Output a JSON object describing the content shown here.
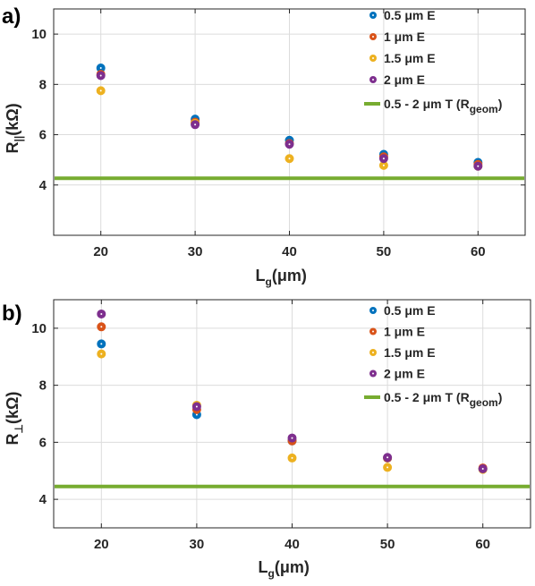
{
  "chart_data": [
    {
      "type": "scatter",
      "panel_label": "a)",
      "ylabel": {
        "main": "R",
        "sub": "||",
        "unit": "(kΩ)"
      },
      "xlabel": {
        "main": "L",
        "sub": "g",
        "unit": "(μm)"
      },
      "xlim": [
        15,
        65
      ],
      "ylim": [
        2,
        11
      ],
      "xticks": [
        "20",
        "30",
        "40",
        "50",
        "60"
      ],
      "yticks": [
        "4",
        "6",
        "8",
        "10"
      ],
      "grid": true,
      "legend_position": "top-right",
      "x": [
        20,
        30,
        40,
        50,
        60
      ],
      "series": [
        {
          "name": "0.5 μm E",
          "color": "#0072BD",
          "values": [
            8.65,
            6.62,
            5.78,
            5.22,
            4.9
          ]
        },
        {
          "name": "1 μm E",
          "color": "#D95319",
          "values": [
            8.4,
            6.5,
            5.65,
            5.12,
            4.82
          ]
        },
        {
          "name": "1.5 μm E",
          "color": "#EDB120",
          "values": [
            7.75,
            6.45,
            5.05,
            4.78,
            4.75
          ]
        },
        {
          "name": "2 μm E",
          "color": "#7E2F8E",
          "values": [
            8.35,
            6.4,
            5.62,
            5.05,
            4.75
          ]
        }
      ],
      "reference_line": {
        "name": "0.5 - 2 μm T (R",
        "name_sub": "geom",
        "name_end": ")",
        "value": 4.27,
        "color": "#77AC30"
      }
    },
    {
      "type": "scatter",
      "panel_label": "b)",
      "ylabel": {
        "main": "R",
        "sub": "⊥",
        "unit": "(kΩ)"
      },
      "xlabel": {
        "main": "L",
        "sub": "g",
        "unit": "(μm)"
      },
      "xlim": [
        15,
        65
      ],
      "ylim": [
        3,
        11
      ],
      "xticks": [
        "20",
        "30",
        "40",
        "50",
        "60"
      ],
      "yticks": [
        "4",
        "6",
        "8",
        "10"
      ],
      "grid": true,
      "legend_position": "top-right",
      "x": [
        20,
        30,
        40,
        50,
        60
      ],
      "series": [
        {
          "name": "0.5 μm E",
          "color": "#0072BD",
          "values": [
            9.45,
            6.97,
            6.05,
            5.45,
            5.07
          ]
        },
        {
          "name": "1 μm E",
          "color": "#D95319",
          "values": [
            10.05,
            7.15,
            6.05,
            5.45,
            5.1
          ]
        },
        {
          "name": "1.5 μm E",
          "color": "#EDB120",
          "values": [
            9.1,
            7.3,
            5.45,
            5.12,
            5.05
          ]
        },
        {
          "name": "2 μm E",
          "color": "#7E2F8E",
          "values": [
            10.5,
            7.25,
            6.15,
            5.47,
            5.07
          ]
        }
      ],
      "reference_line": {
        "name": "0.5 - 2 μm T (R",
        "name_sub": "geom",
        "name_end": ")",
        "value": 4.45,
        "color": "#77AC30"
      }
    }
  ]
}
